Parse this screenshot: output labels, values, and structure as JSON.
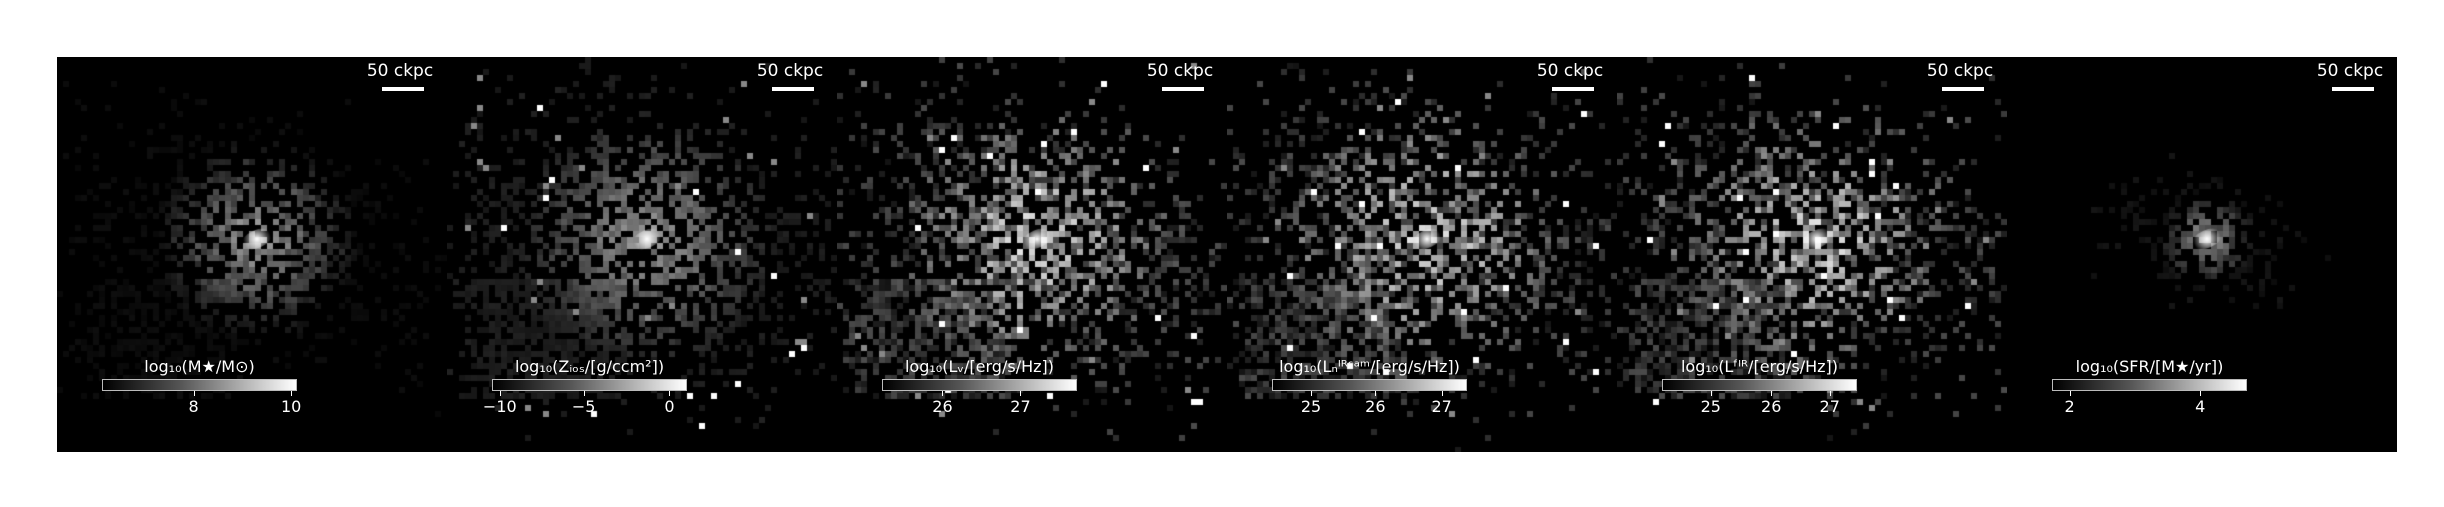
{
  "scale_label": "50 ckpc",
  "panels": [
    {
      "cbar_label": "log₁₀(M★/M⊙)",
      "ticks": [
        {
          "label": "8",
          "pos": 0.47
        },
        {
          "label": "10",
          "pos": 0.97
        }
      ],
      "style": "mass"
    },
    {
      "cbar_label": "log₁₀(Zᵢₒₛ/[g/ccm²])",
      "ticks": [
        {
          "label": "−10",
          "pos": 0.04
        },
        {
          "label": "−5",
          "pos": 0.47
        },
        {
          "label": "0",
          "pos": 0.91
        }
      ],
      "style": "metal"
    },
    {
      "cbar_label": "log₁₀(Lᵥ/[erg/s/Hz])",
      "ticks": [
        {
          "label": "26",
          "pos": 0.31
        },
        {
          "label": "27",
          "pos": 0.71
        }
      ],
      "style": "lum"
    },
    {
      "cbar_label": "log₁₀(Lₙᴵᴿᶜᵃᵐ/[erg/s/Hz])",
      "ticks": [
        {
          "label": "25",
          "pos": 0.2
        },
        {
          "label": "26",
          "pos": 0.53
        },
        {
          "label": "27",
          "pos": 0.87
        }
      ],
      "style": "lum"
    },
    {
      "cbar_label": "log₁₀(Lᶠᴵᴿ/[erg/s/Hz])",
      "ticks": [
        {
          "label": "25",
          "pos": 0.25
        },
        {
          "label": "26",
          "pos": 0.56
        },
        {
          "label": "27",
          "pos": 0.86
        }
      ],
      "style": "lum"
    },
    {
      "cbar_label": "log₁₀(SFR/[M★/yr])",
      "ticks": [
        {
          "label": "2",
          "pos": 0.09
        },
        {
          "label": "4",
          "pos": 0.76
        }
      ],
      "style": "sfr"
    }
  ]
}
